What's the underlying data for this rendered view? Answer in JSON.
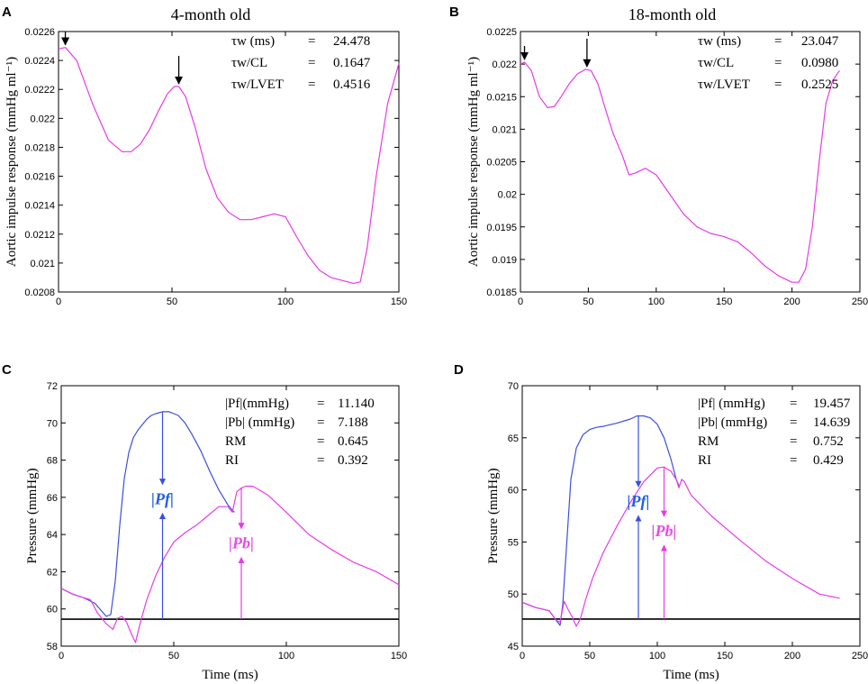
{
  "colors": {
    "magenta": "#e83ae8",
    "blue": "#3b4fe0",
    "black": "#000000",
    "blue_label": "#1f5fe8",
    "magenta_label": "#e64ce6"
  },
  "chart_data": [
    {
      "panel": "A",
      "type": "line",
      "title": "4-month old",
      "xlabel": "",
      "ylabel": "Aortic impulse response (mmHg ml⁻¹)",
      "xlim": [
        0,
        150
      ],
      "ylim": [
        0.0208,
        0.0226
      ],
      "xticks": [
        0,
        50,
        100,
        150
      ],
      "yticks": [
        0.0208,
        0.021,
        0.0212,
        0.0214,
        0.0216,
        0.0218,
        0.022,
        0.0222,
        0.0224,
        0.0226
      ],
      "ytick_labels": [
        "0.0208",
        "0.021",
        "0.0212",
        "0.0214",
        "0.0216",
        "0.0218",
        "0.022",
        "0.0222",
        "0.0224",
        "0.0226"
      ],
      "series": [
        {
          "name": "impulse response",
          "color": "#e83ae8",
          "x": [
            0,
            3,
            8,
            15,
            22,
            28,
            32,
            36,
            40,
            44,
            48,
            51,
            53,
            56,
            60,
            65,
            70,
            75,
            80,
            85,
            90,
            95,
            100,
            105,
            110,
            115,
            120,
            125,
            130,
            133,
            136,
            140,
            145,
            150
          ],
          "y": [
            0.02248,
            0.02249,
            0.0224,
            0.0221,
            0.02185,
            0.02177,
            0.02177,
            0.02182,
            0.02192,
            0.02205,
            0.02217,
            0.02222,
            0.02222,
            0.02215,
            0.02195,
            0.02165,
            0.02145,
            0.02135,
            0.0213,
            0.0213,
            0.02132,
            0.02134,
            0.02132,
            0.02118,
            0.02105,
            0.02095,
            0.0209,
            0.02088,
            0.02086,
            0.02087,
            0.0211,
            0.0216,
            0.0221,
            0.02238
          ]
        }
      ],
      "arrows_x": [
        3,
        53
      ],
      "annotations": [
        {
          "label": "τw (ms)",
          "eq": "=",
          "value": "24.478"
        },
        {
          "label": "τw/CL",
          "eq": "=",
          "value": "0.1647"
        },
        {
          "label": "τw/LVET",
          "eq": "=",
          "value": "0.4516"
        }
      ]
    },
    {
      "panel": "B",
      "type": "line",
      "title": "18-month old",
      "xlabel": "",
      "ylabel": "Aortic impulse response (mmHg ml⁻¹)",
      "xlim": [
        0,
        250
      ],
      "ylim": [
        0.0185,
        0.0225
      ],
      "xticks": [
        0,
        50,
        100,
        150,
        200,
        250
      ],
      "yticks": [
        0.0185,
        0.019,
        0.0195,
        0.02,
        0.0205,
        0.021,
        0.0215,
        0.022,
        0.0225
      ],
      "ytick_labels": [
        "0.0185",
        "0.019",
        "0.0195",
        "0.02",
        "0.0205",
        "0.021",
        "0.0215",
        "0.022",
        "0.0225"
      ],
      "series": [
        {
          "name": "impulse response",
          "color": "#e83ae8",
          "x": [
            0,
            3,
            8,
            14,
            20,
            25,
            30,
            36,
            42,
            48,
            52,
            57,
            62,
            68,
            75,
            80,
            85,
            92,
            100,
            110,
            120,
            130,
            140,
            150,
            160,
            170,
            180,
            190,
            200,
            205,
            210,
            215,
            220,
            225,
            230,
            235
          ],
          "y": [
            0.022,
            0.02203,
            0.0219,
            0.0215,
            0.02133,
            0.02135,
            0.0215,
            0.0217,
            0.02185,
            0.02192,
            0.0219,
            0.0217,
            0.02135,
            0.02095,
            0.0206,
            0.0203,
            0.02033,
            0.0204,
            0.0203,
            0.02,
            0.0197,
            0.0195,
            0.0194,
            0.01935,
            0.01927,
            0.0191,
            0.0189,
            0.01875,
            0.01865,
            0.01865,
            0.01885,
            0.0195,
            0.0205,
            0.0214,
            0.02175,
            0.0219
          ]
        }
      ],
      "arrows_x": [
        3,
        49
      ],
      "annotations": [
        {
          "label": "τw (ms)",
          "eq": "=",
          "value": "23.047"
        },
        {
          "label": "τw/CL",
          "eq": "=",
          "value": "0.0980"
        },
        {
          "label": "τw/LVET",
          "eq": "=",
          "value": "0.2525"
        }
      ]
    },
    {
      "panel": "C",
      "type": "line",
      "title": "",
      "xlabel": "Time (ms)",
      "ylabel": "Pressure (mmHg)",
      "xlim": [
        0,
        150
      ],
      "ylim": [
        58,
        72
      ],
      "xticks": [
        0,
        50,
        100,
        150
      ],
      "yticks": [
        58,
        60,
        62,
        64,
        66,
        68,
        70,
        72
      ],
      "ytick_labels": [
        "58",
        "60",
        "62",
        "64",
        "66",
        "68",
        "70",
        "72"
      ],
      "baseline": 59.45,
      "series": [
        {
          "name": "forward wave",
          "color": "#3b4fe0",
          "x": [
            0,
            5,
            10,
            15,
            20,
            22,
            24,
            26,
            28,
            30,
            32,
            34,
            36,
            38,
            40,
            42,
            45,
            48,
            50,
            52,
            55,
            58,
            62,
            66,
            70,
            74,
            76,
            77
          ],
          "y": [
            61.1,
            60.8,
            60.6,
            60.3,
            59.6,
            59.7,
            61.5,
            64.5,
            67.0,
            68.4,
            69.2,
            69.6,
            69.9,
            70.2,
            70.4,
            70.5,
            70.6,
            70.6,
            70.5,
            70.4,
            70.0,
            69.4,
            68.5,
            67.4,
            66.4,
            65.6,
            65.3,
            65.2
          ]
        },
        {
          "name": "backward wave",
          "color": "#e83ae8",
          "x": [
            0,
            5,
            10,
            13,
            16,
            20,
            23,
            25,
            27,
            29,
            31,
            33,
            35,
            38,
            42,
            46,
            50,
            55,
            60,
            65,
            70,
            74,
            76,
            78,
            80,
            82,
            85,
            88,
            92,
            100,
            110,
            120,
            130,
            140,
            150
          ],
          "y": [
            61.1,
            60.8,
            60.6,
            60.5,
            59.8,
            59.2,
            58.9,
            59.5,
            59.6,
            59.3,
            58.7,
            58.2,
            59.2,
            60.5,
            61.8,
            62.8,
            63.6,
            64.1,
            64.5,
            65.0,
            65.5,
            65.5,
            65.2,
            66.3,
            66.5,
            66.6,
            66.6,
            66.4,
            66.1,
            65.2,
            64.0,
            63.2,
            62.5,
            62.0,
            61.3
          ]
        }
      ],
      "arrows": [
        {
          "x": 45,
          "color": "#3b4fe0",
          "label": "Pf"
        },
        {
          "x": 80,
          "color": "#e83ae8",
          "label": "Pb"
        }
      ],
      "annotations": [
        {
          "label": "|Pf|(mmHg)",
          "eq": "=",
          "value": "11.140"
        },
        {
          "label": "|Pb| (mmHg)",
          "eq": "=",
          "value": "7.188"
        },
        {
          "label": "RM",
          "eq": "=",
          "value": "0.645"
        },
        {
          "label": "RI",
          "eq": "=",
          "value": "0.392"
        }
      ]
    },
    {
      "panel": "D",
      "type": "line",
      "title": "",
      "xlabel": "Time (ms)",
      "ylabel": "Pressure (mmHg)",
      "xlim": [
        0,
        250
      ],
      "ylim": [
        45,
        70
      ],
      "xticks": [
        0,
        50,
        100,
        150,
        200,
        250
      ],
      "yticks": [
        45,
        50,
        55,
        60,
        65,
        70
      ],
      "ytick_labels": [
        "45",
        "50",
        "55",
        "60",
        "65",
        "70"
      ],
      "baseline": 47.6,
      "series": [
        {
          "name": "forward wave",
          "color": "#3b4fe0",
          "x": [
            0,
            10,
            20,
            25,
            28,
            30,
            33,
            36,
            40,
            45,
            50,
            55,
            60,
            70,
            80,
            85,
            90,
            95,
            100,
            105,
            110,
            114,
            116
          ],
          "y": [
            49.2,
            48.7,
            48.4,
            47.5,
            47.0,
            49.0,
            55.0,
            61.0,
            64.0,
            65.3,
            65.8,
            66.0,
            66.1,
            66.4,
            66.8,
            67.1,
            67.1,
            66.9,
            66.3,
            65.0,
            63.0,
            61.0,
            60.4
          ]
        },
        {
          "name": "backward wave",
          "color": "#e83ae8",
          "x": [
            0,
            10,
            20,
            25,
            28,
            31,
            34,
            37,
            40,
            43,
            47,
            52,
            60,
            70,
            80,
            90,
            100,
            105,
            110,
            114,
            116,
            118,
            120,
            125,
            140,
            160,
            180,
            200,
            220,
            235
          ],
          "y": [
            49.2,
            48.7,
            48.4,
            47.5,
            47.3,
            49.3,
            48.5,
            47.8,
            46.9,
            47.6,
            49.5,
            51.5,
            54.0,
            56.5,
            58.8,
            60.8,
            62.1,
            62.2,
            61.8,
            61.0,
            60.2,
            61.0,
            60.8,
            59.5,
            57.5,
            55.3,
            53.2,
            51.5,
            50.0,
            49.6
          ]
        }
      ],
      "arrows": [
        {
          "x": 86,
          "color": "#3b4fe0",
          "label": "Pf"
        },
        {
          "x": 105,
          "color": "#e83ae8",
          "label": "Pb"
        }
      ],
      "annotations": [
        {
          "label": "|Pf| (mmHg)",
          "eq": "=",
          "value": "19.457"
        },
        {
          "label": "|Pb| (mmHg)",
          "eq": "=",
          "value": "14.639"
        },
        {
          "label": "RM",
          "eq": "=",
          "value": "0.752"
        },
        {
          "label": "RI",
          "eq": "=",
          "value": "0.429"
        }
      ]
    }
  ],
  "arrow_labels": {
    "Pf": "|Pf|",
    "Pb": "|Pb|"
  }
}
